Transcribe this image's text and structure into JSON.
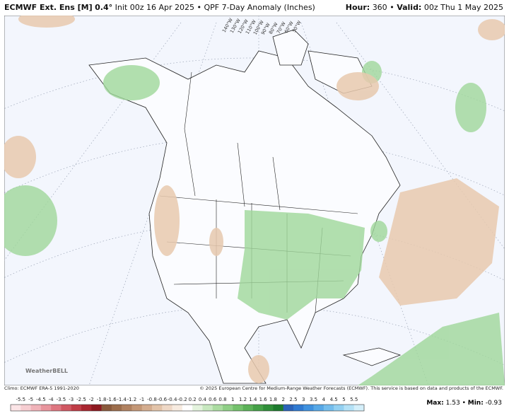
{
  "header": {
    "model": "ECMWF Ext. Ens [M]",
    "resolution": "0.4°",
    "init": "Init 00z 16 Apr 2025",
    "separator": "•",
    "product": "QPF 7-Day Anomaly (Inches)",
    "hour_label": "Hour:",
    "hour": "360",
    "valid_label": "Valid:",
    "valid": "00z Thu 1 May 2025"
  },
  "map": {
    "longitude_labels": [
      "140°W",
      "130°W",
      "120°W",
      "110°W",
      "100°W",
      "90°W",
      "80°W",
      "70°W",
      "60°W",
      "50°W"
    ],
    "logo": "WeatherBELL"
  },
  "footer": {
    "climo": "Climo: ECMWF ERA-5 1991-2020",
    "copyright": "© 2025 European Centre for Medium-Range Weather Forecasts (ECMWF). This service is based on data and products of the ECMWF.",
    "max_label": "Max:",
    "max": 1.53,
    "min_label": "Min:",
    "min": -0.93,
    "separator": "•"
  },
  "colorbar": {
    "labels": [
      -5.5,
      -5,
      -4.5,
      -4,
      -3.5,
      -3,
      -2.5,
      -2,
      -1.8,
      -1.6,
      -1.4,
      -1.2,
      -1,
      -0.8,
      -0.6,
      -0.4,
      -0.2,
      0.2,
      0.4,
      0.6,
      0.8,
      1,
      1.2,
      1.4,
      1.6,
      1.8,
      2,
      2.5,
      3,
      3.5,
      4,
      4.5,
      5,
      5.5
    ],
    "colors": [
      "#fbe4e6",
      "#f6cdd1",
      "#f0b3b9",
      "#e8959d",
      "#de7680",
      "#d05862",
      "#bf3c46",
      "#a92630",
      "#8e1920",
      "#8a5a3c",
      "#9c6d4c",
      "#b08160",
      "#c39776",
      "#d4ad8f",
      "#e2c3a9",
      "#eed8c6",
      "#f7ebe0",
      "#ffffff",
      "#e3f3dd",
      "#c7e8bf",
      "#abdca1",
      "#8fcf86",
      "#74c16c",
      "#5bb157",
      "#44a046",
      "#2f8e38",
      "#1d7a2d",
      "#2a62b8",
      "#2f79d0",
      "#3f91de",
      "#57a8e6",
      "#74bdec",
      "#93d0f1",
      "#b4e1f6",
      "#d4effa"
    ]
  }
}
